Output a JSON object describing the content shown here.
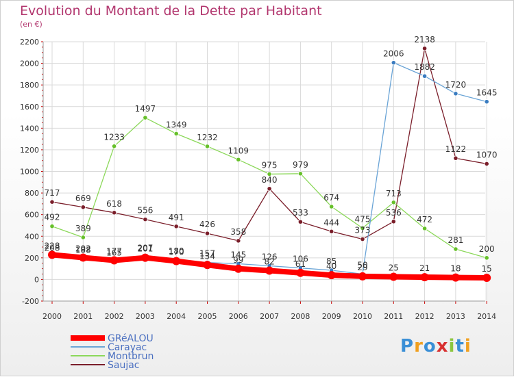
{
  "title": "Evolution du Montant de la Dette par Habitant",
  "unit": "(en €)",
  "logo_text": "Proxiti",
  "colors": {
    "title": "#b2366e",
    "axis": "#cc0000",
    "grid": "#d9d9d9",
    "logo": [
      "#3a8fd6",
      "#f0a020",
      "#8cc63f"
    ]
  },
  "chart_data": {
    "type": "line",
    "title": "Evolution du Montant de la Dette par Habitant",
    "ylabel": "(en €)",
    "xlabel": "",
    "ylim": [
      -200,
      2200
    ],
    "yticks": [
      "-200",
      "0",
      "200",
      "400",
      "600",
      "800",
      "1000",
      "1200",
      "1400",
      "1600",
      "1800",
      "2000",
      "2200"
    ],
    "ytick_values": [
      -200,
      0,
      200,
      400,
      600,
      800,
      1000,
      1200,
      1400,
      1600,
      1800,
      2000,
      2200
    ],
    "x": [
      "2000",
      "2001",
      "2002",
      "2003",
      "2004",
      "2005",
      "2006",
      "2007",
      "2008",
      "2009",
      "2010",
      "2011",
      "2012",
      "2013",
      "2014"
    ],
    "grid": true,
    "legend_position": "bottom-left",
    "series": [
      {
        "name": "Saujac",
        "color": "#7a1e2a",
        "width": 1.3,
        "marker": "#7a1e2a",
        "values": [
          717,
          669,
          618,
          556,
          491,
          426,
          358,
          840,
          533,
          444,
          373,
          536,
          2138,
          1122,
          1070
        ],
        "labels": [
          "717",
          "669",
          "618",
          "556",
          "491",
          "426",
          "358",
          "840",
          "533",
          "444",
          "373",
          "536",
          "2138",
          "1122",
          "1070"
        ]
      },
      {
        "name": "Montbrun",
        "color": "#8cd85a",
        "width": 1.3,
        "marker": "#66c02a",
        "values": [
          492,
          389,
          1233,
          1497,
          1349,
          1232,
          1109,
          975,
          979,
          674,
          475,
          713,
          472,
          281,
          200
        ],
        "labels": [
          "492",
          "389",
          "1233",
          "1497",
          "1349",
          "1232",
          "1109",
          "975",
          "979",
          "674",
          "475",
          "713",
          "472",
          "281",
          "200"
        ]
      },
      {
        "name": "Carayac",
        "color": "#6aa4d6",
        "width": 1.3,
        "marker": "#3a7cc0",
        "values": [
          208,
          188,
          165,
          207,
          180,
          157,
          145,
          126,
          106,
          85,
          50,
          2006,
          1882,
          1720,
          1645
        ],
        "labels": [
          "208",
          "188",
          "165",
          "207",
          "180",
          "157",
          "145",
          "126",
          "106",
          "85",
          "50",
          "2006",
          "1882",
          "1720",
          "1645"
        ]
      },
      {
        "name": "GRéALOU",
        "color": "#ff0000",
        "width": 8,
        "marker": "#ff0000",
        "values": [
          228,
          202,
          177,
          201,
          170,
          134,
          99,
          82,
          61,
          40,
          29,
          25,
          21,
          18,
          15
        ],
        "labels": [
          "228",
          "202",
          "177",
          "201",
          "170",
          "134",
          "99",
          "82",
          "61",
          "40",
          "29",
          "25",
          "21",
          "18",
          "15"
        ]
      }
    ],
    "legend": [
      {
        "name": "GRéALOU",
        "color": "#ff0000",
        "width": 8
      },
      {
        "name": "Carayac",
        "color": "#6aa4d6",
        "width": 2
      },
      {
        "name": "Montbrun",
        "color": "#8cd85a",
        "width": 2
      },
      {
        "name": "Saujac",
        "color": "#7a1e2a",
        "width": 2
      }
    ]
  }
}
